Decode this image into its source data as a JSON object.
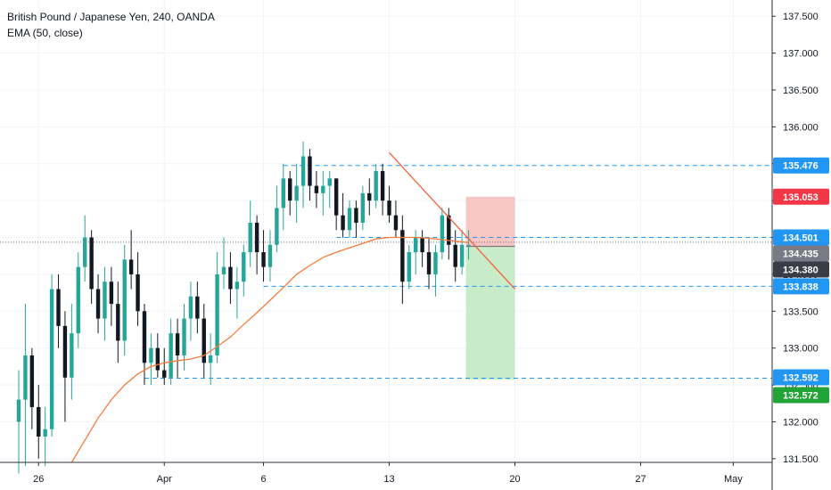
{
  "legend": {
    "title": "British Pound / Japanese Yen, 240, OANDA",
    "indicator": "EMA (50, close)"
  },
  "colors": {
    "up": "#26a69a",
    "down": "#131722",
    "ema": "#f57c3b",
    "trendline": "#f0603a",
    "dashed": "#2196f3",
    "stop_zone": "#f9c6c6",
    "target_zone": "#c8ecc8",
    "badge_blue": "#2196f3",
    "badge_red": "#f23645",
    "badge_gray": "#787b86",
    "badge_dark": "#3a3d47",
    "badge_green": "#22a336"
  },
  "chart_data": {
    "type": "candlestick",
    "title": "British Pound / Japanese Yen, 240, OANDA",
    "ylim": [
      131.45,
      137.72
    ],
    "y_ticks": [
      "131.500",
      "132.000",
      "132.500",
      "133.000",
      "133.500",
      "134.000",
      "134.500",
      "135.000",
      "135.500",
      "136.000",
      "136.500",
      "137.000",
      "137.500"
    ],
    "y_tick_values": [
      131.5,
      132.0,
      132.5,
      133.0,
      133.5,
      134.0,
      134.5,
      135.0,
      135.5,
      136.0,
      136.5,
      137.0,
      137.5
    ],
    "x_ticks": [
      "26",
      "Apr",
      "6",
      "13",
      "20",
      "27",
      "May"
    ],
    "x_tick_bars": [
      3,
      22,
      37,
      56,
      75,
      94,
      108
    ],
    "bars_visible": 110,
    "levels": [
      {
        "name": "resistance",
        "value": 135.476,
        "label": "135.476",
        "color": "badge_blue",
        "from_bar": 40,
        "dashed": true
      },
      {
        "name": "stop-loss",
        "value": 135.053,
        "label": "135.053",
        "color": "badge_red",
        "dashed": false
      },
      {
        "name": "entry-zone-top",
        "value": 134.501,
        "label": "134.501",
        "color": "badge_blue",
        "from_bar": 48,
        "dashed": true
      },
      {
        "name": "last-price",
        "value": 134.435,
        "label": "134.435",
        "color": "badge_gray",
        "dashed": false
      },
      {
        "name": "entry",
        "value": 134.38,
        "label": "134.380",
        "color": "badge_dark",
        "dashed": false
      },
      {
        "name": "support-mid",
        "value": 133.838,
        "label": "133.838",
        "color": "badge_blue",
        "from_bar": 37,
        "dashed": true
      },
      {
        "name": "support-low",
        "value": 132.592,
        "label": "132.592",
        "color": "badge_blue",
        "from_bar": 19,
        "dashed": true
      },
      {
        "name": "target",
        "value": 132.572,
        "label": "132.572",
        "color": "badge_green",
        "dashed": false
      }
    ],
    "position": {
      "entry": 134.38,
      "stop": 135.053,
      "target": 132.572,
      "from_bar": 68,
      "to_bar": 75
    },
    "trendline": {
      "start": {
        "bar": 56,
        "value": 135.65
      },
      "end": {
        "bar": 75,
        "value": 133.8
      }
    },
    "ohlc": [
      [
        132.0,
        132.7,
        131.3,
        132.3
      ],
      [
        132.3,
        133.6,
        131.4,
        132.9
      ],
      [
        132.9,
        133.0,
        131.9,
        132.2
      ],
      [
        132.2,
        132.5,
        131.5,
        131.8
      ],
      [
        131.8,
        132.2,
        131.4,
        131.9
      ],
      [
        131.9,
        134.0,
        131.8,
        133.8
      ],
      [
        133.8,
        134.0,
        133.0,
        133.3
      ],
      [
        133.3,
        133.5,
        132.0,
        132.6
      ],
      [
        132.6,
        133.6,
        132.3,
        133.2
      ],
      [
        133.2,
        134.3,
        133.0,
        134.1
      ],
      [
        134.1,
        134.8,
        133.9,
        134.5
      ],
      [
        134.5,
        134.6,
        133.6,
        133.8
      ],
      [
        133.8,
        134.0,
        133.2,
        133.4
      ],
      [
        133.4,
        134.1,
        133.1,
        133.9
      ],
      [
        133.9,
        134.1,
        133.3,
        133.6
      ],
      [
        133.6,
        133.9,
        132.8,
        133.1
      ],
      [
        133.1,
        134.4,
        132.9,
        134.2
      ],
      [
        134.2,
        134.6,
        133.8,
        134.0
      ],
      [
        134.0,
        134.3,
        133.3,
        133.5
      ],
      [
        133.5,
        133.6,
        132.5,
        132.8
      ],
      [
        132.8,
        133.2,
        132.5,
        133.0
      ],
      [
        133.0,
        133.2,
        132.6,
        132.7
      ],
      [
        132.7,
        133.0,
        132.5,
        132.6
      ],
      [
        132.6,
        133.4,
        132.5,
        133.2
      ],
      [
        133.2,
        133.4,
        132.6,
        132.9
      ],
      [
        132.9,
        133.6,
        132.7,
        133.4
      ],
      [
        133.4,
        133.9,
        133.1,
        133.7
      ],
      [
        133.7,
        133.9,
        133.2,
        133.4
      ],
      [
        133.4,
        133.6,
        132.6,
        132.8
      ],
      [
        132.8,
        133.2,
        132.5,
        132.9
      ],
      [
        132.9,
        134.3,
        132.8,
        134.0
      ],
      [
        134.0,
        134.5,
        133.8,
        134.1
      ],
      [
        134.1,
        134.3,
        133.6,
        133.8
      ],
      [
        133.8,
        134.1,
        133.4,
        133.9
      ],
      [
        133.9,
        134.4,
        133.7,
        134.3
      ],
      [
        134.3,
        135.0,
        134.1,
        134.7
      ],
      [
        134.7,
        134.8,
        134.0,
        134.3
      ],
      [
        134.3,
        134.6,
        133.9,
        134.1
      ],
      [
        134.1,
        134.6,
        133.9,
        134.4
      ],
      [
        134.4,
        135.2,
        134.3,
        134.9
      ],
      [
        134.9,
        135.5,
        134.6,
        135.3
      ],
      [
        135.3,
        135.4,
        134.8,
        135.0
      ],
      [
        135.0,
        135.5,
        134.7,
        135.2
      ],
      [
        135.2,
        135.8,
        134.9,
        135.6
      ],
      [
        135.6,
        135.7,
        135.0,
        135.2
      ],
      [
        135.2,
        135.4,
        134.9,
        135.1
      ],
      [
        135.1,
        135.4,
        134.8,
        135.2
      ],
      [
        135.2,
        135.4,
        134.9,
        135.3
      ],
      [
        135.3,
        135.3,
        134.6,
        134.8
      ],
      [
        134.8,
        135.1,
        134.5,
        134.6
      ],
      [
        134.6,
        135.0,
        134.5,
        134.9
      ],
      [
        134.9,
        135.0,
        134.5,
        134.7
      ],
      [
        134.7,
        135.2,
        134.6,
        135.1
      ],
      [
        135.1,
        135.3,
        134.8,
        135.0
      ],
      [
        135.0,
        135.5,
        134.9,
        135.4
      ],
      [
        135.4,
        135.5,
        134.8,
        135.0
      ],
      [
        135.0,
        135.2,
        134.7,
        134.8
      ],
      [
        134.8,
        135.0,
        134.5,
        134.6
      ],
      [
        134.6,
        134.8,
        133.6,
        133.9
      ],
      [
        133.9,
        134.4,
        133.8,
        134.3
      ],
      [
        134.3,
        134.6,
        134.0,
        134.5
      ],
      [
        134.5,
        134.6,
        134.1,
        134.3
      ],
      [
        134.3,
        134.5,
        133.8,
        134.0
      ],
      [
        134.0,
        134.4,
        133.7,
        134.3
      ],
      [
        134.3,
        134.9,
        134.2,
        134.8
      ],
      [
        134.8,
        134.9,
        134.2,
        134.4
      ],
      [
        134.4,
        134.6,
        133.9,
        134.1
      ],
      [
        134.1,
        134.6,
        134.0,
        134.4
      ],
      [
        134.4,
        134.6,
        134.2,
        134.4
      ]
    ],
    "ema": [
      [
        8,
        131.45
      ],
      [
        10,
        131.75
      ],
      [
        12,
        132.05
      ],
      [
        14,
        132.3
      ],
      [
        16,
        132.5
      ],
      [
        18,
        132.65
      ],
      [
        20,
        132.75
      ],
      [
        22,
        132.8
      ],
      [
        24,
        132.83
      ],
      [
        26,
        132.85
      ],
      [
        28,
        132.9
      ],
      [
        30,
        133.02
      ],
      [
        32,
        133.15
      ],
      [
        34,
        133.32
      ],
      [
        36,
        133.48
      ],
      [
        38,
        133.65
      ],
      [
        40,
        133.82
      ],
      [
        42,
        134.0
      ],
      [
        44,
        134.12
      ],
      [
        46,
        134.23
      ],
      [
        48,
        134.3
      ],
      [
        50,
        134.36
      ],
      [
        52,
        134.42
      ],
      [
        54,
        134.48
      ],
      [
        56,
        134.5
      ],
      [
        58,
        134.5
      ],
      [
        60,
        134.5
      ],
      [
        62,
        134.49
      ],
      [
        64,
        134.47
      ],
      [
        66,
        134.45
      ],
      [
        68,
        134.43
      ]
    ]
  }
}
